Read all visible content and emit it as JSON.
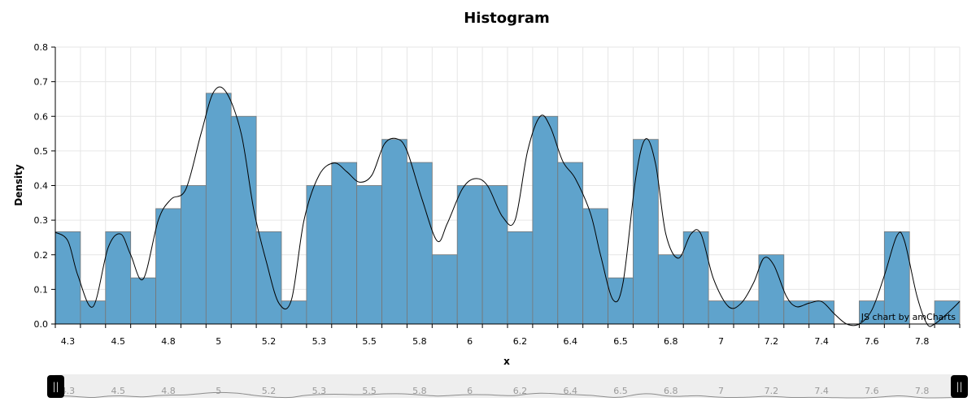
{
  "chart_data": {
    "type": "bar",
    "title": "Histogram",
    "xlabel": "x",
    "ylabel": "Density",
    "ylim": [
      0,
      0.8
    ],
    "yticks": [
      "0.0",
      "0.1",
      "0.2",
      "0.3",
      "0.4",
      "0.5",
      "0.6",
      "0.7",
      "0.8"
    ],
    "xtick_labels": [
      "4.3",
      "4.5",
      "4.8",
      "5",
      "5.2",
      "5.3",
      "5.5",
      "5.8",
      "6",
      "6.2",
      "6.4",
      "6.5",
      "6.8",
      "7",
      "7.2",
      "7.4",
      "7.6",
      "7.8"
    ],
    "xtick_bins": [
      0,
      2,
      4,
      6,
      8,
      10,
      12,
      14,
      16,
      18,
      20,
      22,
      24,
      26,
      28,
      30,
      32,
      34
    ],
    "bin_count": 36,
    "bins": [
      {
        "x": 4.3,
        "y": 0.2667
      },
      {
        "x": 4.4,
        "y": 0.0667
      },
      {
        "x": 4.5,
        "y": 0.2667
      },
      {
        "x": 4.6,
        "y": 0.1333
      },
      {
        "x": 4.7,
        "y": 0.3333
      },
      {
        "x": 4.8,
        "y": 0.4
      },
      {
        "x": 5.0,
        "y": 0.6667
      },
      {
        "x": 5.1,
        "y": 0.6
      },
      {
        "x": 5.2,
        "y": 0.2667
      },
      {
        "x": 5.25,
        "y": 0.0667
      },
      {
        "x": 5.3,
        "y": 0.4
      },
      {
        "x": 5.4,
        "y": 0.4667
      },
      {
        "x": 5.5,
        "y": 0.4
      },
      {
        "x": 5.6,
        "y": 0.5333
      },
      {
        "x": 5.7,
        "y": 0.4667
      },
      {
        "x": 5.8,
        "y": 0.2
      },
      {
        "x": 6.0,
        "y": 0.4
      },
      {
        "x": 6.1,
        "y": 0.4
      },
      {
        "x": 6.2,
        "y": 0.2667
      },
      {
        "x": 6.3,
        "y": 0.6
      },
      {
        "x": 6.4,
        "y": 0.4667
      },
      {
        "x": 6.45,
        "y": 0.3333
      },
      {
        "x": 6.5,
        "y": 0.1333
      },
      {
        "x": 6.7,
        "y": 0.5333
      },
      {
        "x": 6.8,
        "y": 0.2
      },
      {
        "x": 6.9,
        "y": 0.2667
      },
      {
        "x": 7.0,
        "y": 0.0667
      },
      {
        "x": 7.1,
        "y": 0.0667
      },
      {
        "x": 7.2,
        "y": 0.2
      },
      {
        "x": 7.3,
        "y": 0.0667
      },
      {
        "x": 7.4,
        "y": 0.0667
      },
      {
        "x": 7.5,
        "y": 0
      },
      {
        "x": 7.6,
        "y": 0.0667
      },
      {
        "x": 7.7,
        "y": 0.2667
      },
      {
        "x": 7.8,
        "y": 0
      },
      {
        "x": 7.9,
        "y": 0.0667
      }
    ],
    "density_curve": [
      [
        0.0,
        0.265
      ],
      [
        0.5,
        0.24
      ],
      [
        0.9,
        0.14
      ],
      [
        1.5,
        0.05
      ],
      [
        2.1,
        0.22
      ],
      [
        2.6,
        0.26
      ],
      [
        3.0,
        0.2
      ],
      [
        3.5,
        0.13
      ],
      [
        4.1,
        0.3
      ],
      [
        4.6,
        0.36
      ],
      [
        5.2,
        0.39
      ],
      [
        5.8,
        0.55
      ],
      [
        6.3,
        0.67
      ],
      [
        6.8,
        0.67
      ],
      [
        7.4,
        0.55
      ],
      [
        7.9,
        0.33
      ],
      [
        8.4,
        0.18
      ],
      [
        8.9,
        0.06
      ],
      [
        9.4,
        0.07
      ],
      [
        9.9,
        0.3
      ],
      [
        10.5,
        0.43
      ],
      [
        11.1,
        0.465
      ],
      [
        11.6,
        0.44
      ],
      [
        12.1,
        0.41
      ],
      [
        12.6,
        0.43
      ],
      [
        13.1,
        0.52
      ],
      [
        13.6,
        0.535
      ],
      [
        14.0,
        0.5
      ],
      [
        14.6,
        0.36
      ],
      [
        15.2,
        0.24
      ],
      [
        15.6,
        0.29
      ],
      [
        16.2,
        0.39
      ],
      [
        16.7,
        0.42
      ],
      [
        17.2,
        0.4
      ],
      [
        17.8,
        0.31
      ],
      [
        18.3,
        0.3
      ],
      [
        18.8,
        0.5
      ],
      [
        19.3,
        0.6
      ],
      [
        19.7,
        0.57
      ],
      [
        20.2,
        0.47
      ],
      [
        20.7,
        0.42
      ],
      [
        21.3,
        0.32
      ],
      [
        21.7,
        0.2
      ],
      [
        22.2,
        0.07
      ],
      [
        22.6,
        0.12
      ],
      [
        23.1,
        0.42
      ],
      [
        23.5,
        0.535
      ],
      [
        23.9,
        0.46
      ],
      [
        24.3,
        0.26
      ],
      [
        24.8,
        0.19
      ],
      [
        25.3,
        0.26
      ],
      [
        25.7,
        0.26
      ],
      [
        26.2,
        0.13
      ],
      [
        26.8,
        0.05
      ],
      [
        27.3,
        0.06
      ],
      [
        27.8,
        0.12
      ],
      [
        28.2,
        0.19
      ],
      [
        28.6,
        0.17
      ],
      [
        29.1,
        0.08
      ],
      [
        29.5,
        0.05
      ],
      [
        30.0,
        0.06
      ],
      [
        30.5,
        0.065
      ],
      [
        31.0,
        0.03
      ],
      [
        31.5,
        0.0
      ],
      [
        32.0,
        0.0
      ],
      [
        32.5,
        0.04
      ],
      [
        33.0,
        0.14
      ],
      [
        33.5,
        0.255
      ],
      [
        33.8,
        0.24
      ],
      [
        34.3,
        0.08
      ],
      [
        34.7,
        0.0
      ],
      [
        35.0,
        0.0
      ],
      [
        35.5,
        0.03
      ],
      [
        36.0,
        0.065
      ]
    ],
    "grid": true,
    "bar_color": "#5fa3cc",
    "bar_border_color": "#777777",
    "curve_color": "#000000"
  },
  "credit": "JS chart by amCharts",
  "scrollbar": {
    "left_handle": "||",
    "right_handle": "||"
  }
}
